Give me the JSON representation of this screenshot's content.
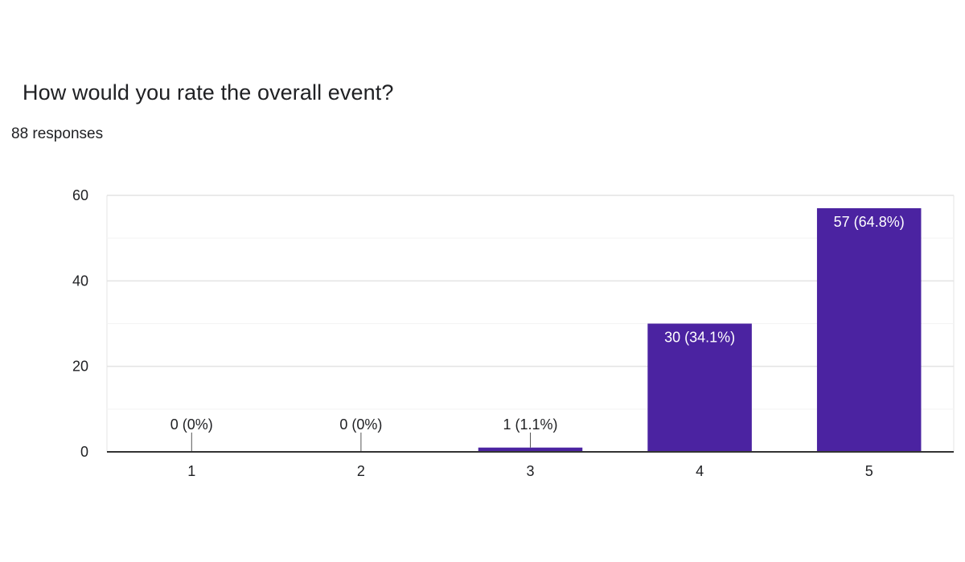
{
  "question": {
    "title": "How would you rate the overall event?",
    "responses": "88 responses"
  },
  "colors": {
    "bar": "#4b23a1",
    "gridline": "#e6e6e6",
    "axis": "#333333",
    "inner_label": "#ffffff",
    "outer_label": "#202124"
  },
  "chart_data": {
    "type": "bar",
    "categories": [
      "1",
      "2",
      "3",
      "4",
      "5"
    ],
    "values": [
      0,
      0,
      1,
      30,
      57
    ],
    "data_labels": [
      "0 (0%)",
      "0 (0%)",
      "1 (1.1%)",
      "30 (34.1%)",
      "57 (64.8%)"
    ],
    "ylim": [
      0,
      60
    ],
    "yticks": [
      0,
      20,
      40,
      60
    ],
    "grid": true,
    "legend": "none"
  }
}
